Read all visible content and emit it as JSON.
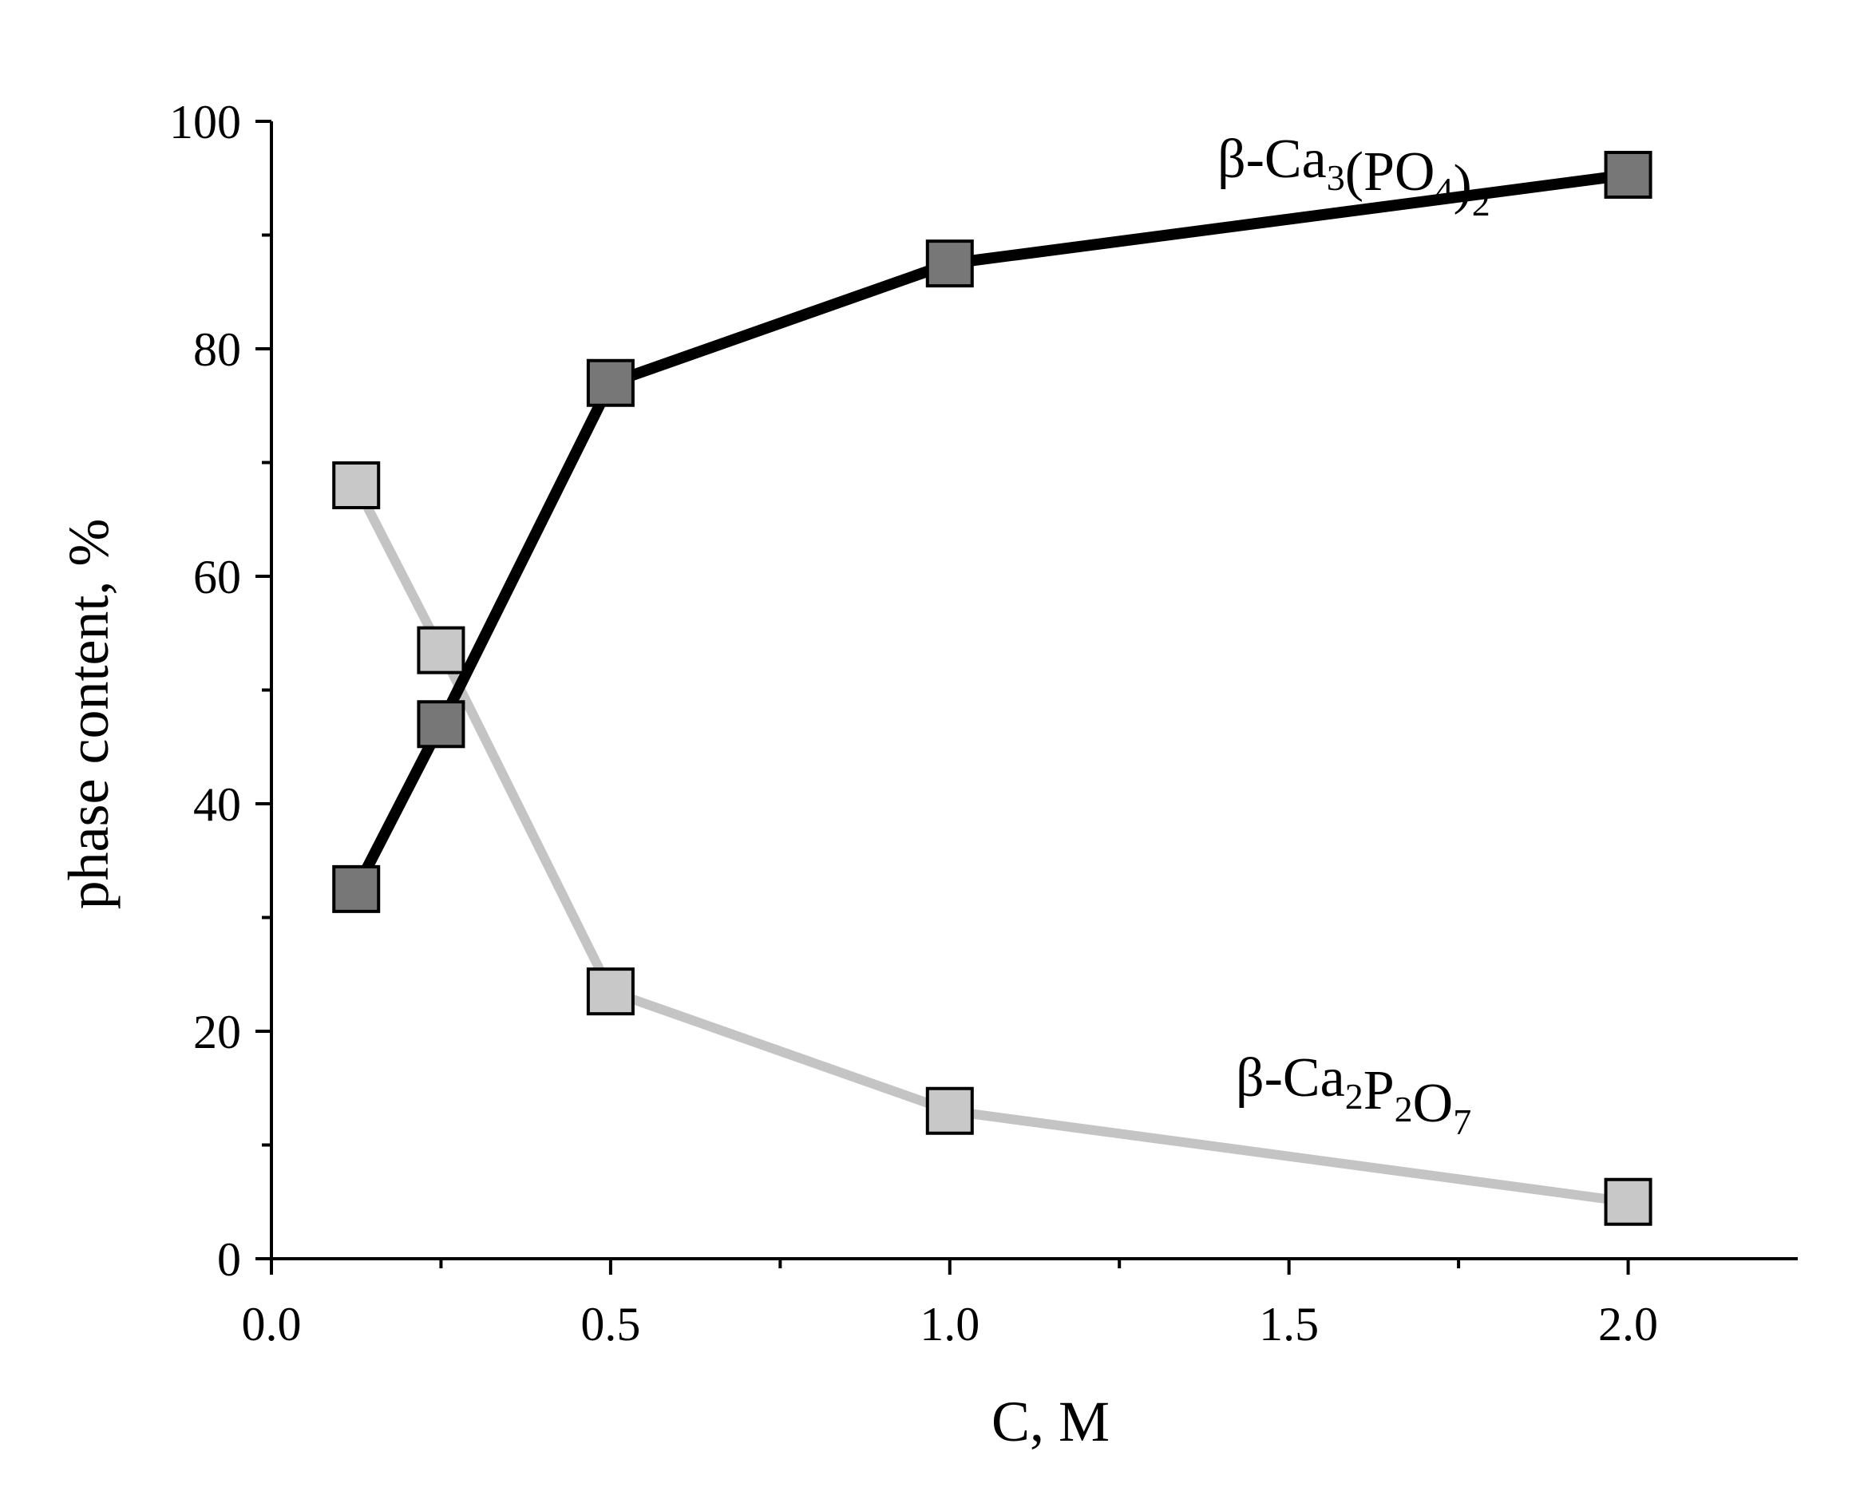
{
  "chart_data": {
    "type": "line",
    "xlabel": "C, M",
    "ylabel": "phase content, %",
    "xlim": [
      0.0,
      2.25
    ],
    "ylim": [
      0,
      100
    ],
    "x_ticks": [
      "0.0",
      "0.5",
      "1.0",
      "1.5",
      "2.0"
    ],
    "y_ticks": [
      "0",
      "20",
      "40",
      "60",
      "80",
      "100"
    ],
    "grid": false,
    "series": [
      {
        "name": "β-Ca3(PO4)2",
        "label_parts": [
          {
            "text": "β-Ca",
            "sub": false
          },
          {
            "text": "3",
            "sub": true
          },
          {
            "text": "(PO",
            "sub": false
          },
          {
            "text": "4",
            "sub": true
          },
          {
            "text": ")",
            "sub": false
          },
          {
            "text": "2",
            "sub": true
          }
        ],
        "x": [
          0.125,
          0.25,
          0.5,
          1.0,
          2.0
        ],
        "y": [
          32.5,
          47,
          77,
          87.5,
          95.3
        ],
        "line_color": "#000000",
        "marker_color": "#777777"
      },
      {
        "name": "β-Ca2P2O7",
        "label_parts": [
          {
            "text": "β-Ca",
            "sub": false
          },
          {
            "text": "2",
            "sub": true
          },
          {
            "text": "P",
            "sub": false
          },
          {
            "text": "2",
            "sub": true
          },
          {
            "text": "O",
            "sub": false
          },
          {
            "text": "7",
            "sub": true
          }
        ],
        "x": [
          0.125,
          0.25,
          0.5,
          1.0,
          2.0
        ],
        "y": [
          68,
          53.5,
          23.5,
          13,
          5
        ],
        "line_color": "#c4c4c4",
        "marker_color": "#c8c8c8"
      }
    ]
  }
}
